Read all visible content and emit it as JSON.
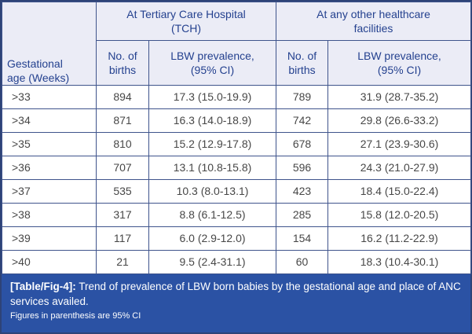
{
  "table": {
    "row_header": "Gestational\nage (Weeks)",
    "groups": [
      "At Tertiary Care Hospital\n(TCH)",
      "At any other healthcare\nfacilities"
    ],
    "sub_headers": [
      "No. of\nbirths",
      "LBW prevalence,\n(95% CI)",
      "No. of\nbirths",
      "LBW prevalence,\n(95% CI)"
    ],
    "rows": [
      [
        ">33",
        "894",
        "17.3 (15.0-19.9)",
        "789",
        "31.9 (28.7-35.2)"
      ],
      [
        ">34",
        "871",
        "16.3 (14.0-18.9)",
        "742",
        "29.8 (26.6-33.2)"
      ],
      [
        ">35",
        "810",
        "15.2 (12.9-17.8)",
        "678",
        "27.1 (23.9-30.6)"
      ],
      [
        ">36",
        "707",
        "13.1 (10.8-15.8)",
        "596",
        "24.3 (21.0-27.9)"
      ],
      [
        ">37",
        "535",
        "10.3 (8.0-13.1)",
        "423",
        "18.4 (15.0-22.4)"
      ],
      [
        ">38",
        "317",
        "8.8 (6.1-12.5)",
        "285",
        "15.8 (12.0-20.5)"
      ],
      [
        ">39",
        "117",
        "6.0 (2.9-12.0)",
        "154",
        "16.2 (11.2-22.9)"
      ],
      [
        ">40",
        "21",
        "9.5 (2.4-31.1)",
        "60",
        "18.3 (10.4-30.1)"
      ]
    ]
  },
  "caption": {
    "label": "[Table/Fig-4]:",
    "text": " Trend of prevalence of LBW born babies by the gestational age and place of ANC services availed.",
    "note": "Figures in parenthesis are 95% CI"
  },
  "colors": {
    "header_background": "#ebecf6",
    "header_text": "#24418f",
    "grid_line": "#3f548c",
    "outer_border": "#2e4377",
    "data_text": "#474747",
    "caption_background": "#2b52a4",
    "caption_text": "#ffffff"
  }
}
